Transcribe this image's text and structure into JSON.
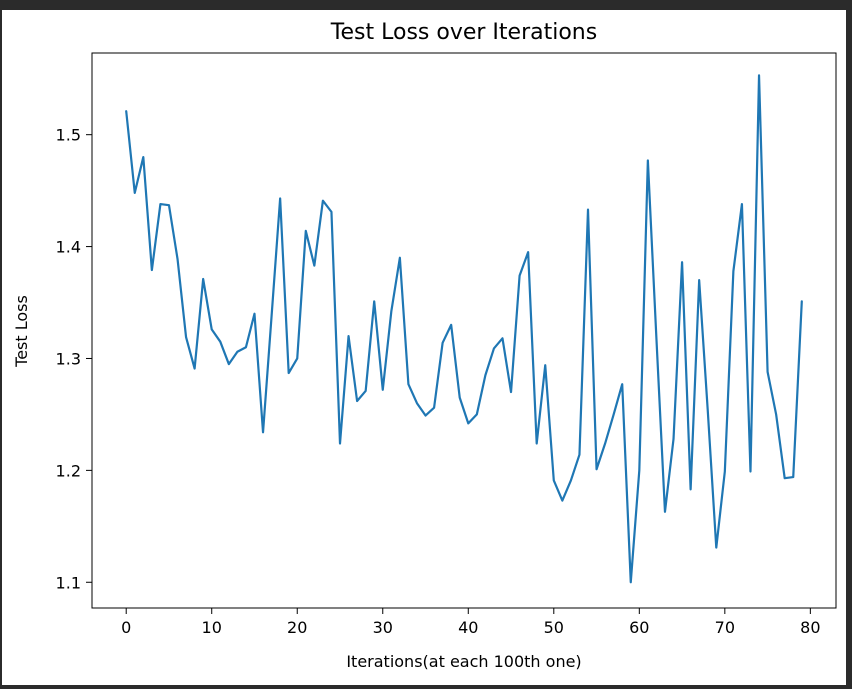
{
  "chart_data": {
    "type": "line",
    "title": "Test Loss over Iterations",
    "xlabel": "Iterations(at each 100th one)",
    "ylabel": "Test Loss",
    "xlim": [
      -4,
      83
    ],
    "ylim": [
      1.077,
      1.573
    ],
    "xticks": [
      0,
      10,
      20,
      30,
      40,
      50,
      60,
      70,
      80
    ],
    "yticks": [
      1.1,
      1.2,
      1.3,
      1.4,
      1.5
    ],
    "grid": false,
    "series": [
      {
        "color": "#1f77b4",
        "x": [
          0,
          1,
          2,
          3,
          4,
          5,
          6,
          7,
          8,
          9,
          10,
          11,
          12,
          13,
          14,
          15,
          16,
          17,
          18,
          19,
          20,
          21,
          22,
          23,
          24,
          25,
          26,
          27,
          28,
          29,
          30,
          31,
          32,
          33,
          34,
          35,
          36,
          37,
          38,
          39,
          40,
          41,
          42,
          43,
          44,
          45,
          46,
          47,
          48,
          49,
          50,
          51,
          52,
          53,
          54,
          55,
          56,
          57,
          58,
          59,
          60,
          61,
          62,
          63,
          64,
          65,
          66,
          67,
          68,
          69,
          70,
          71,
          72,
          73,
          74,
          75,
          76,
          77,
          78,
          79
        ],
        "values": [
          1.521,
          1.448,
          1.48,
          1.379,
          1.438,
          1.437,
          1.389,
          1.319,
          1.291,
          1.371,
          1.326,
          1.315,
          1.295,
          1.306,
          1.31,
          1.34,
          1.234,
          1.338,
          1.443,
          1.287,
          1.3,
          1.414,
          1.383,
          1.441,
          1.431,
          1.224,
          1.32,
          1.262,
          1.271,
          1.351,
          1.272,
          1.342,
          1.39,
          1.277,
          1.26,
          1.249,
          1.256,
          1.314,
          1.33,
          1.265,
          1.242,
          1.25,
          1.285,
          1.309,
          1.318,
          1.27,
          1.374,
          1.395,
          1.224,
          1.294,
          1.191,
          1.173,
          1.191,
          1.214,
          1.433,
          1.201,
          1.224,
          1.25,
          1.277,
          1.1,
          1.2,
          1.477,
          1.318,
          1.163,
          1.228,
          1.386,
          1.183,
          1.37,
          1.254,
          1.131,
          1.199,
          1.378,
          1.438,
          1.199,
          1.553,
          1.288,
          1.25,
          1.193,
          1.194,
          1.351
        ]
      }
    ]
  }
}
